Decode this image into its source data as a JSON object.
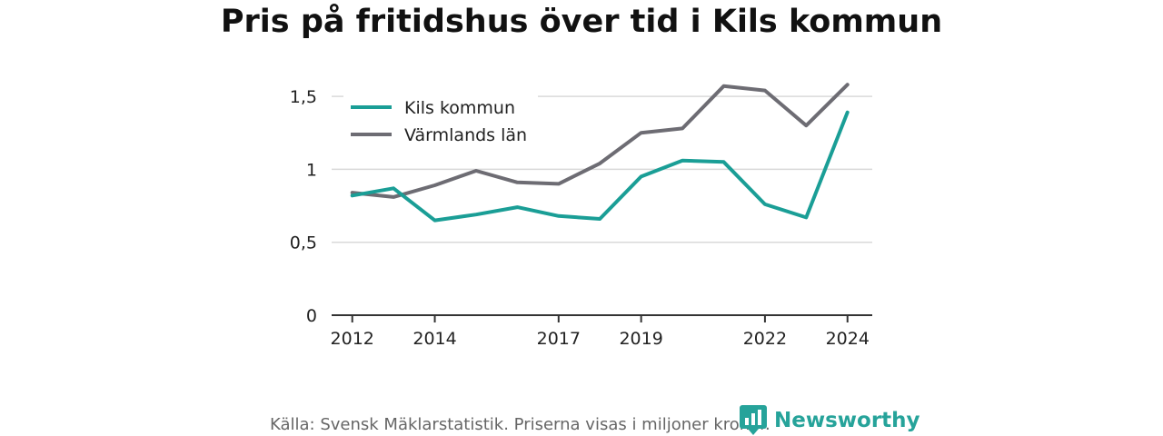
{
  "title": "Pris på fritidshus över tid i Kils kommun",
  "footer": {
    "source": "Källa: Svensk Mäklarstatistik. Priserna visas i miljoner kronor.",
    "brand": "Newsworthy",
    "brand_icon": "newsworthy-logo-icon"
  },
  "colors": {
    "kils": "#1a9e96",
    "varmland": "#6d6c73",
    "grid": "#d9d9d9",
    "axis": "#333333"
  },
  "chart_data": {
    "type": "line",
    "title": "Pris på fritidshus över tid i Kils kommun",
    "xlabel": "",
    "ylabel": "",
    "x": [
      2012,
      2013,
      2014,
      2015,
      2016,
      2017,
      2018,
      2019,
      2020,
      2021,
      2022,
      2023,
      2024
    ],
    "xticks": [
      2012,
      2014,
      2017,
      2019,
      2022,
      2024
    ],
    "xlim": [
      2011.5,
      2024.6
    ],
    "yticks": [
      0,
      0.5,
      1,
      1.5
    ],
    "ytick_labels": [
      "0",
      "0,5",
      "1",
      "1,5"
    ],
    "ylim": [
      0,
      1.6
    ],
    "grid": true,
    "legend": "top-left",
    "series": [
      {
        "name": "Kils kommun",
        "color": "#1a9e96",
        "values": [
          0.82,
          0.87,
          0.65,
          0.69,
          0.74,
          0.68,
          0.66,
          0.95,
          1.06,
          1.05,
          0.76,
          0.67,
          1.39
        ]
      },
      {
        "name": "Värmlands län",
        "color": "#6d6c73",
        "values": [
          0.84,
          0.81,
          0.89,
          0.99,
          0.91,
          0.9,
          1.04,
          1.25,
          1.28,
          1.57,
          1.54,
          1.3,
          1.58
        ]
      }
    ]
  }
}
